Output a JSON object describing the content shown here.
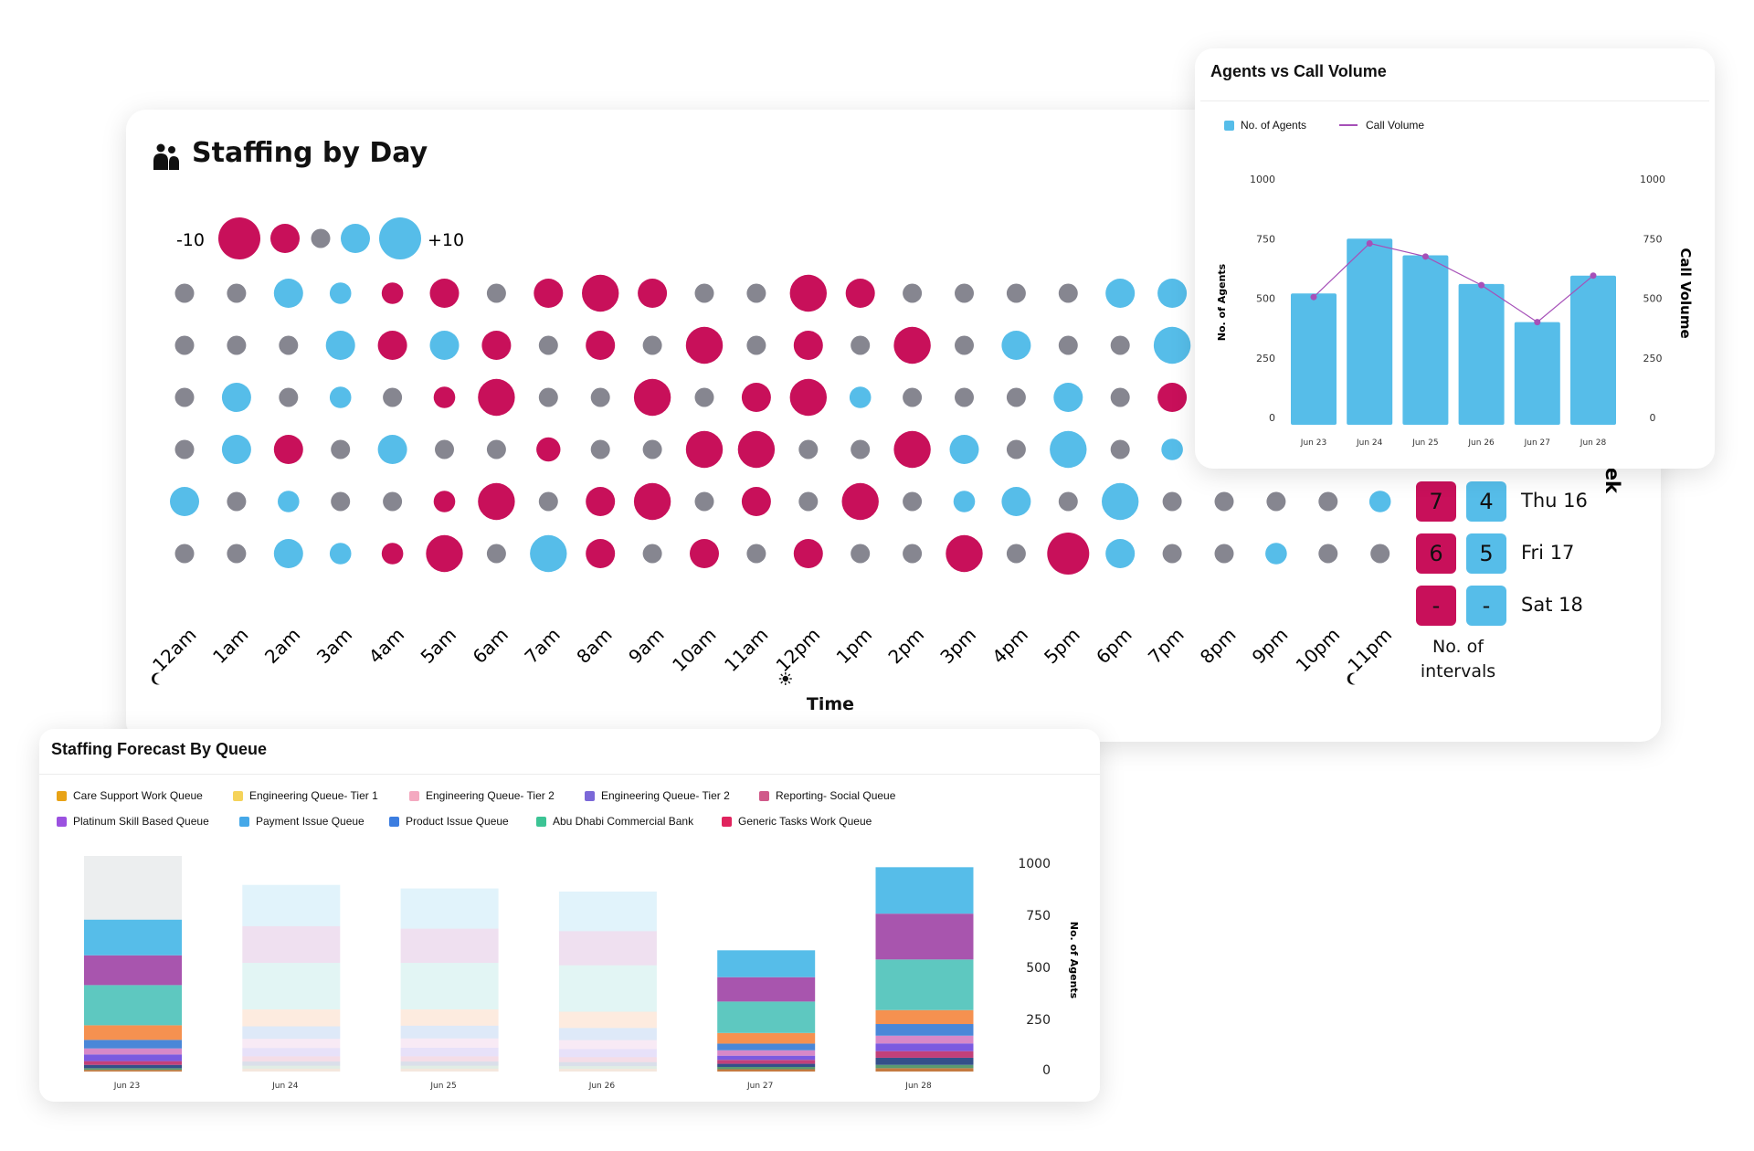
{
  "staffing_by_day": {
    "title": "Staffing by Day",
    "icon": "people-icon",
    "colors": {
      "under": "#c8105a",
      "over": "#56bde9",
      "neutral": "#868690"
    },
    "legend": {
      "min_label": "-10",
      "max_label": "+10",
      "steps": [
        -10,
        -5,
        0,
        5,
        10
      ]
    },
    "hours": [
      "12am",
      "1am",
      "2am",
      "3am",
      "4am",
      "5am",
      "6am",
      "7am",
      "8am",
      "9am",
      "10am",
      "11am",
      "12pm",
      "1pm",
      "2pm",
      "3pm",
      "4pm",
      "5pm",
      "6pm",
      "7pm",
      "8pm",
      "9pm",
      "10pm",
      "11pm"
    ],
    "time_markers": {
      "12am": "moon-icon",
      "12pm": "sun-icon",
      "11pm": "moon-icon"
    },
    "rows": [
      {
        "values": [
          0,
          0,
          5,
          2,
          -2,
          -5,
          0,
          -5,
          -8,
          -5,
          0,
          0,
          -8,
          -5,
          0,
          0,
          0,
          0,
          5,
          5,
          null,
          null,
          null,
          null
        ]
      },
      {
        "values": [
          0,
          0,
          0,
          5,
          -5,
          5,
          -5,
          0,
          -5,
          0,
          -8,
          0,
          -5,
          0,
          -8,
          0,
          5,
          0,
          0,
          8,
          null,
          null,
          null,
          null
        ]
      },
      {
        "values": [
          0,
          5,
          0,
          2,
          0,
          -2,
          -8,
          0,
          0,
          -8,
          0,
          -5,
          -8,
          2,
          0,
          0,
          0,
          5,
          0,
          -5,
          null,
          null,
          null,
          null
        ]
      },
      {
        "values": [
          0,
          5,
          -5,
          0,
          5,
          0,
          0,
          -3,
          0,
          0,
          -8,
          -8,
          0,
          0,
          -8,
          5,
          0,
          8,
          0,
          2,
          null,
          null,
          null,
          null
        ]
      },
      {
        "day": "Thu 16",
        "under": "7",
        "over": "4",
        "values": [
          5,
          0,
          2,
          0,
          0,
          -2,
          -8,
          0,
          -5,
          -8,
          0,
          -5,
          0,
          -8,
          0,
          2,
          5,
          0,
          8,
          0,
          0,
          0,
          0,
          2
        ]
      },
      {
        "day": "Fri 17",
        "under": "6",
        "over": "5",
        "values": [
          0,
          0,
          5,
          2,
          -2,
          -8,
          0,
          8,
          -5,
          0,
          -5,
          0,
          -5,
          0,
          0,
          -8,
          0,
          -10,
          5,
          0,
          0,
          2,
          0,
          0
        ]
      },
      {
        "day": "Sat 18",
        "under": "-",
        "over": "-",
        "values": []
      }
    ],
    "intervals_label_line1": "No. of",
    "intervals_label_line2": "intervals",
    "x_axis_label": "Time",
    "y_axis_label": "Week"
  },
  "agents_vs_call_volume": {
    "title": "Agents vs Call Volume",
    "chart_data": {
      "type": "bar",
      "categories": [
        "Jun 23",
        "Jun 24",
        "Jun 25",
        "Jun 26",
        "Jun 27",
        "Jun 28"
      ],
      "series": [
        {
          "name": "No. of Agents",
          "type": "bar",
          "color": "#56bde9",
          "values": [
            520,
            750,
            680,
            560,
            400,
            595
          ]
        },
        {
          "name": "Call Volume",
          "type": "line",
          "color": "#a650b8",
          "values": [
            505,
            730,
            675,
            555,
            400,
            595
          ]
        }
      ],
      "ylabel": "No. of Agents",
      "y2label": "Call Volume",
      "ylim": [
        0,
        1000
      ],
      "y2lim": [
        0,
        1000
      ],
      "yticks": [
        "0",
        "250",
        "500",
        "750",
        "1000"
      ],
      "legend": "top-left",
      "grid": false
    }
  },
  "staffing_forecast_by_queue": {
    "title": "Staffing  Forecast By Queue",
    "legend": [
      {
        "label": "Care Support Work Queue",
        "color": "#e8a317"
      },
      {
        "label": "Engineering Queue- Tier 1",
        "color": "#f5d35a"
      },
      {
        "label": "Engineering Queue- Tier 2",
        "color": "#f4a9c0"
      },
      {
        "label": "Engineering Queue- Tier 2",
        "color": "#7b68d8"
      },
      {
        "label": "Reporting- Social Queue",
        "color": "#d05a8a"
      },
      {
        "label": "Platinum Skill Based Queue",
        "color": "#9b51e0"
      },
      {
        "label": "Payment Issue Queue",
        "color": "#45a8e8"
      },
      {
        "label": "Product Issue Queue",
        "color": "#3b7de0"
      },
      {
        "label": "Abu Dhabi Commercial Bank",
        "color": "#3cc495"
      },
      {
        "label": "Generic Tasks Work Queue",
        "color": "#e0245e"
      }
    ],
    "chart_data": {
      "type": "bar",
      "stacked": true,
      "categories": [
        "Jun 23",
        "Jun 24",
        "Jun 25",
        "Jun 26",
        "Jun 27",
        "Jun 28"
      ],
      "highlighted": [
        "Jun 23",
        "Jun 27",
        "Jun 28"
      ],
      "hover_category": "Jun 23",
      "series": [
        {
          "color": "#c47a40",
          "values": [
            8,
            14,
            14,
            13,
            11,
            16
          ]
        },
        {
          "color": "#5a9a70",
          "values": [
            8,
            14,
            14,
            13,
            11,
            16
          ]
        },
        {
          "color": "#34508a",
          "values": [
            16,
            20,
            20,
            19,
            15,
            34
          ]
        },
        {
          "color": "#c2407a",
          "values": [
            18,
            25,
            25,
            24,
            19,
            32
          ]
        },
        {
          "color": "#7b5ae0",
          "values": [
            32,
            40,
            41,
            39,
            20,
            37
          ]
        },
        {
          "color": "#d788c8",
          "values": [
            29,
            44,
            45,
            43,
            26,
            37
          ]
        },
        {
          "color": "#4a87d8",
          "values": [
            41,
            60,
            61,
            58,
            32,
            56
          ]
        },
        {
          "color": "#f59150",
          "values": [
            70,
            81,
            78,
            78,
            51,
            67
          ]
        },
        {
          "color": "#5ec8c0",
          "values": [
            193,
            224,
            224,
            223,
            151,
            243
          ]
        },
        {
          "color": "#a855ae",
          "values": [
            143,
            176,
            164,
            164,
            117,
            220
          ]
        },
        {
          "color": "#56bde9",
          "values": [
            171,
            198,
            193,
            190,
            129,
            223
          ]
        }
      ],
      "ylabel": "No. of Agents",
      "ylim": [
        0,
        1000
      ],
      "yticks": [
        "0",
        "250",
        "500",
        "750",
        "1000"
      ],
      "grid": false
    }
  }
}
